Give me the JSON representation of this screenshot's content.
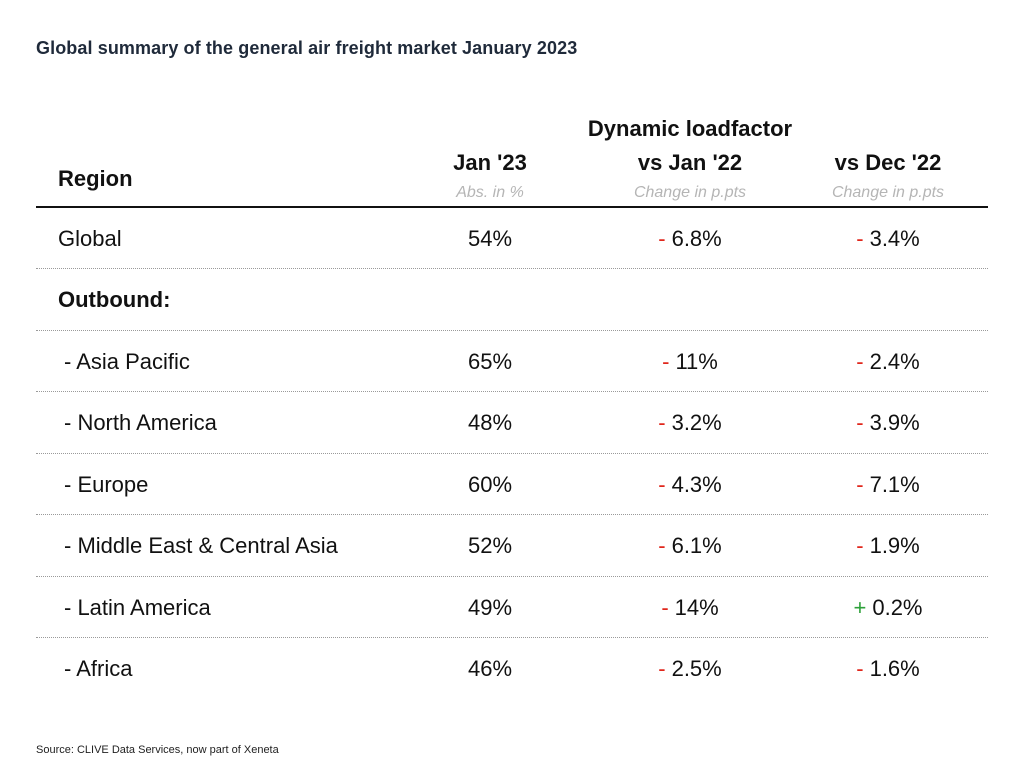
{
  "title": "Global summary of the general air freight market January 2023",
  "source": "Source: CLIVE Data Services, now part of Xeneta",
  "colors": {
    "negative": "#e0261b",
    "positive": "#2ea13a",
    "text": "#111111",
    "subtext": "#b5b5b5"
  },
  "chart_data": {
    "type": "table",
    "group_header": "Dynamic loadfactor",
    "region_header": "Region",
    "columns": [
      {
        "label": "Jan '23",
        "sub": "Abs. in %"
      },
      {
        "label": "vs Jan '22",
        "sub": "Change in p.pts"
      },
      {
        "label": "vs Dec '22",
        "sub": "Change in p.pts"
      }
    ],
    "rows": [
      {
        "region": "Global",
        "style": "normal",
        "jan23": "54%",
        "vs_jan22": {
          "sign": "-",
          "value": "6.8%"
        },
        "vs_dec22": {
          "sign": "-",
          "value": "3.4%"
        }
      },
      {
        "region": "Outbound:",
        "style": "section"
      },
      {
        "region": "- Asia Pacific",
        "style": "indented",
        "jan23": "65%",
        "vs_jan22": {
          "sign": "-",
          "value": "11%"
        },
        "vs_dec22": {
          "sign": "-",
          "value": "2.4%"
        }
      },
      {
        "region": "- North America",
        "style": "indented",
        "jan23": "48%",
        "vs_jan22": {
          "sign": "-",
          "value": "3.2%"
        },
        "vs_dec22": {
          "sign": "-",
          "value": "3.9%"
        }
      },
      {
        "region": "- Europe",
        "style": "indented",
        "jan23": "60%",
        "vs_jan22": {
          "sign": "-",
          "value": "4.3%"
        },
        "vs_dec22": {
          "sign": "-",
          "value": "7.1%"
        }
      },
      {
        "region": "- Middle East & Central Asia",
        "style": "indented",
        "jan23": "52%",
        "vs_jan22": {
          "sign": "-",
          "value": "6.1%"
        },
        "vs_dec22": {
          "sign": "-",
          "value": "1.9%"
        }
      },
      {
        "region": "- Latin America",
        "style": "indented",
        "jan23": "49%",
        "vs_jan22": {
          "sign": "-",
          "value": "14%"
        },
        "vs_dec22": {
          "sign": "+",
          "value": "0.2%"
        }
      },
      {
        "region": "- Africa",
        "style": "indented",
        "jan23": "46%",
        "vs_jan22": {
          "sign": "-",
          "value": "2.5%"
        },
        "vs_dec22": {
          "sign": "-",
          "value": "1.6%"
        }
      }
    ]
  }
}
